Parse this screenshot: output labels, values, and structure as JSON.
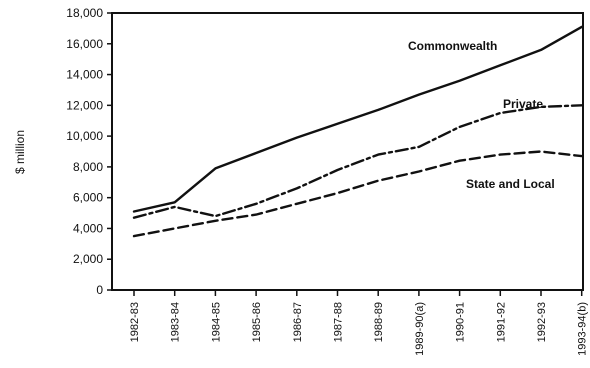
{
  "chart_data": {
    "type": "line",
    "title": "",
    "xlabel": "",
    "ylabel": "$ million",
    "ylim": [
      0,
      18000
    ],
    "yticks": [
      0,
      2000,
      4000,
      6000,
      8000,
      10000,
      12000,
      14000,
      16000,
      18000
    ],
    "ytick_labels": [
      "0",
      "2,000",
      "4,000",
      "6,000",
      "8,000",
      "10,000",
      "12,000",
      "14,000",
      "16,000",
      "18,000"
    ],
    "categories": [
      "1982-83",
      "1983-84",
      "1984-85",
      "1985-86",
      "1986-87",
      "1987-88",
      "1988-89",
      "1989-90(a)",
      "1990-91",
      "1991-92",
      "1992-93",
      "1993-94(b)"
    ],
    "grid": false,
    "legend": "inline labels",
    "series": [
      {
        "name": "Commonwealth",
        "style": "solid",
        "color": "#111111",
        "values": [
          5100,
          5700,
          7900,
          8900,
          9900,
          10800,
          11700,
          12700,
          13600,
          14600,
          15600,
          17100
        ]
      },
      {
        "name": "Private",
        "style": "dashdot",
        "color": "#111111",
        "values": [
          4700,
          5400,
          4800,
          5600,
          6600,
          7800,
          8800,
          9300,
          10600,
          11500,
          11900,
          12000
        ]
      },
      {
        "name": "State and Local",
        "style": "dashed",
        "color": "#111111",
        "values": [
          3500,
          4000,
          4500,
          4900,
          5600,
          6300,
          7100,
          7700,
          8400,
          8800,
          9000,
          8700
        ]
      }
    ]
  }
}
